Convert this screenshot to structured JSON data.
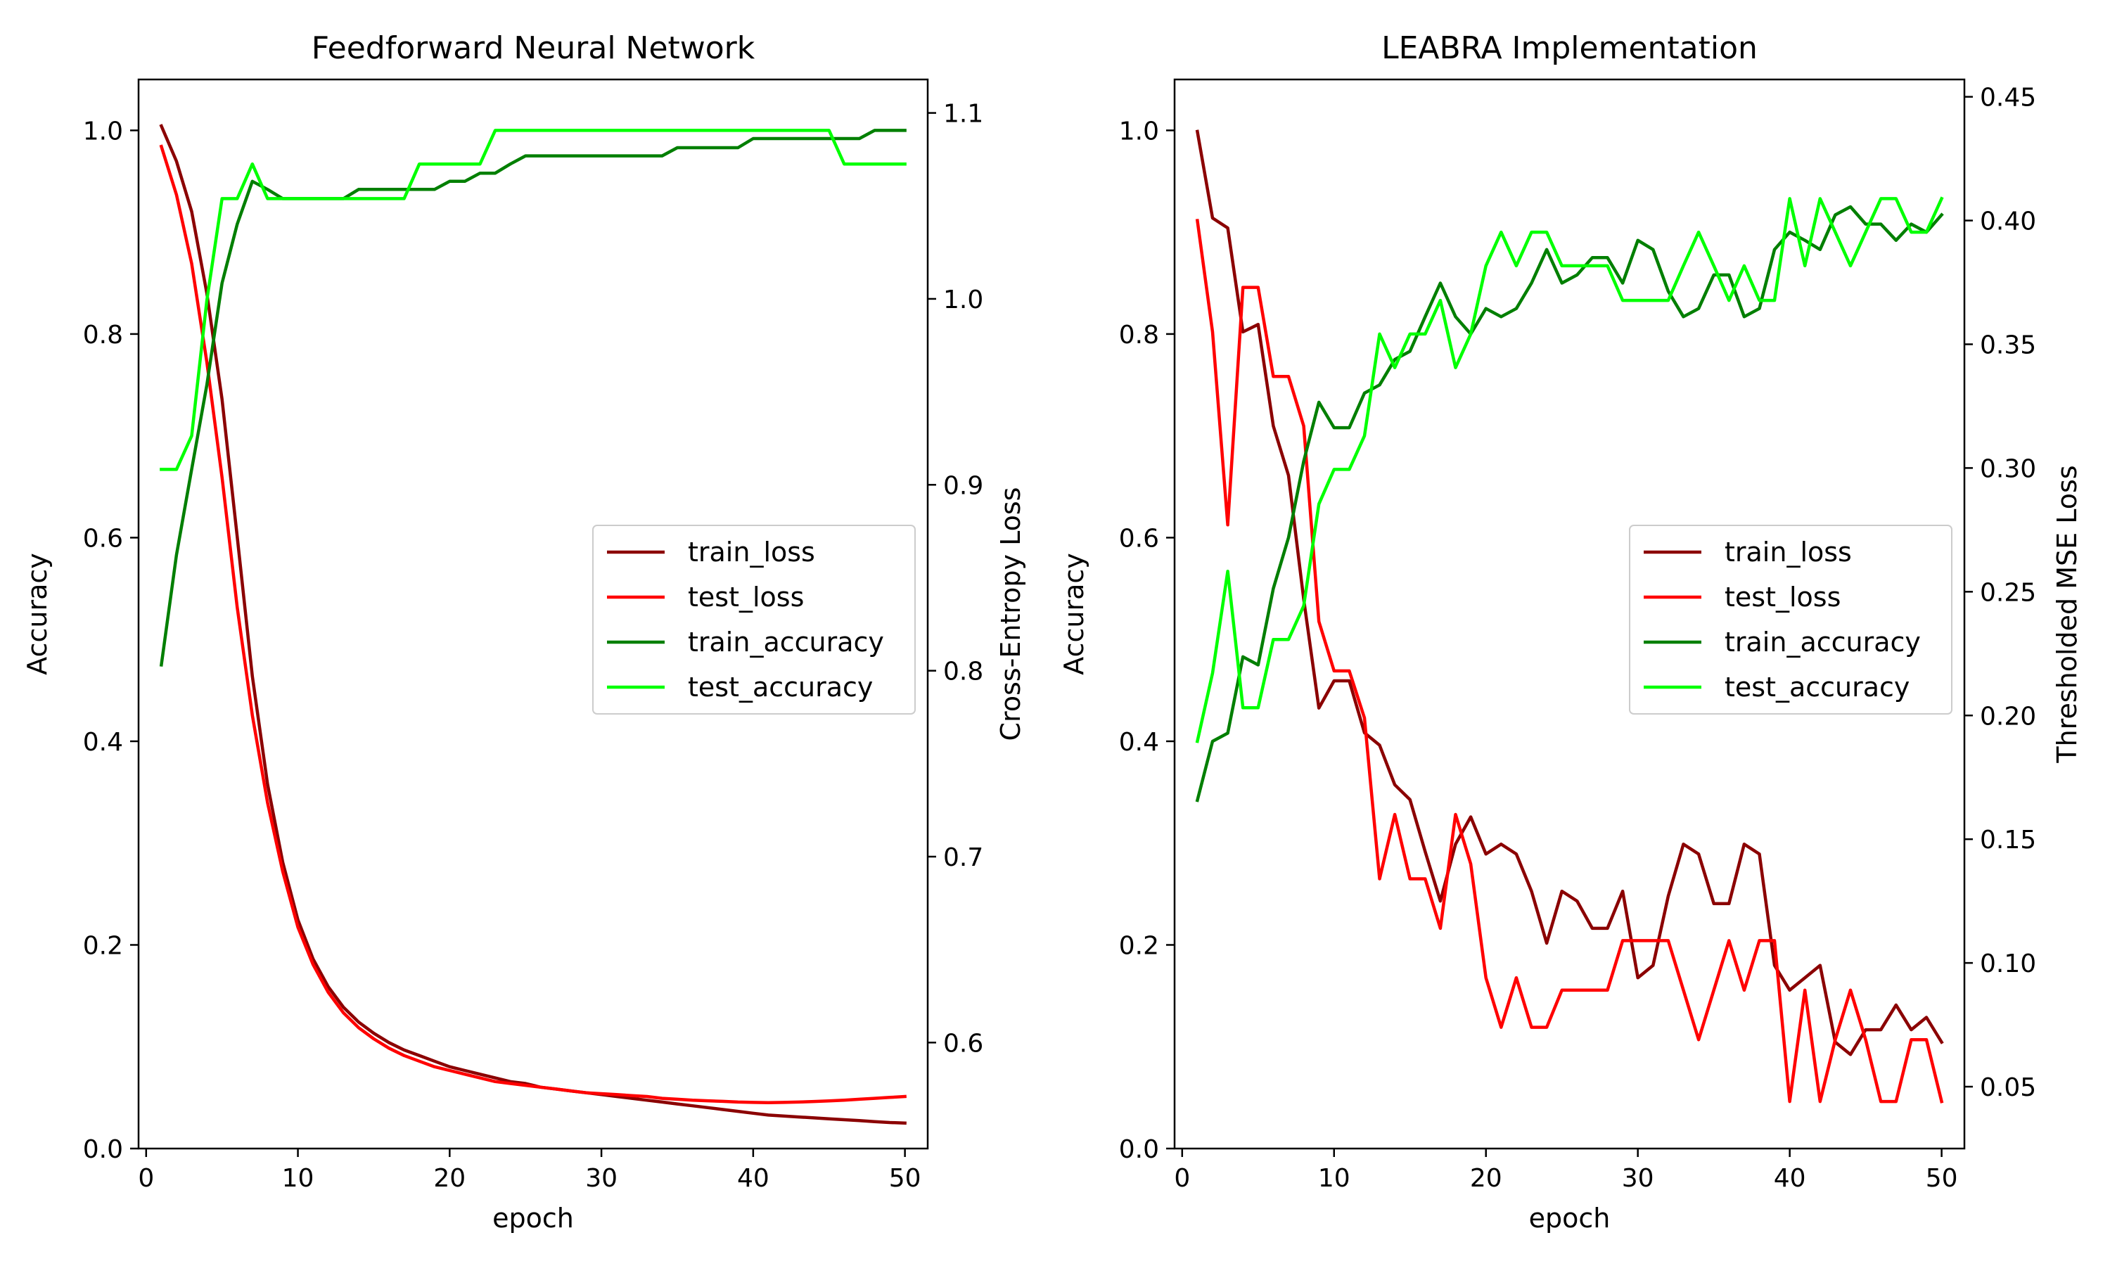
{
  "chart_data": [
    {
      "type": "line",
      "title": "Feedforward Neural Network",
      "xlabel": "epoch",
      "ylabel": "Accuracy",
      "y2label": "Cross-Entropy Loss",
      "xlim": [
        -0.5,
        51.5
      ],
      "ylim": [
        0,
        1.05
      ],
      "y2lim": [
        0.543,
        1.118
      ],
      "xticks": [
        0,
        10,
        20,
        30,
        40,
        50
      ],
      "xtick_labels": [
        "0",
        "10",
        "20",
        "30",
        "40",
        "50"
      ],
      "yticks": [
        0.0,
        0.2,
        0.4,
        0.6,
        0.8,
        1.0
      ],
      "ytick_labels": [
        "0.0",
        "0.2",
        "0.4",
        "0.6",
        "0.8",
        "1.0"
      ],
      "y2ticks": [
        0.6,
        0.7,
        0.8,
        0.9,
        1.0,
        1.1
      ],
      "y2tick_labels": [
        "0.6",
        "0.7",
        "0.8",
        "0.9",
        "1.0",
        "1.1"
      ],
      "legend_position": "center-right",
      "grid": false,
      "x": [
        1,
        2,
        3,
        4,
        5,
        6,
        7,
        8,
        9,
        10,
        11,
        12,
        13,
        14,
        15,
        16,
        17,
        18,
        19,
        20,
        21,
        22,
        23,
        24,
        25,
        26,
        27,
        28,
        29,
        30,
        31,
        32,
        33,
        34,
        35,
        36,
        37,
        38,
        39,
        40,
        41,
        42,
        43,
        44,
        45,
        46,
        47,
        48,
        49,
        50
      ],
      "series": [
        {
          "name": "train_loss",
          "axis": "right",
          "color": "#8b0000",
          "values": [
            1.093,
            1.074,
            1.047,
            1.003,
            0.946,
            0.872,
            0.797,
            0.739,
            0.697,
            0.666,
            0.645,
            0.63,
            0.619,
            0.611,
            0.605,
            0.6,
            0.596,
            0.593,
            0.59,
            0.587,
            0.585,
            0.583,
            0.581,
            0.579,
            0.578,
            0.576,
            0.575,
            0.574,
            0.573,
            0.572,
            0.571,
            0.57,
            0.569,
            0.568,
            0.567,
            0.566,
            0.565,
            0.564,
            0.563,
            0.562,
            0.561,
            0.5605,
            0.56,
            0.5595,
            0.559,
            0.5585,
            0.558,
            0.5575,
            0.557,
            0.5567
          ]
        },
        {
          "name": "test_loss",
          "axis": "right",
          "color": "#ff0000",
          "values": [
            1.082,
            1.056,
            1.019,
            0.966,
            0.904,
            0.834,
            0.776,
            0.729,
            0.692,
            0.662,
            0.642,
            0.627,
            0.616,
            0.608,
            0.602,
            0.597,
            0.593,
            0.59,
            0.587,
            0.585,
            0.583,
            0.581,
            0.579,
            0.578,
            0.577,
            0.576,
            0.575,
            0.574,
            0.573,
            0.5725,
            0.572,
            0.5715,
            0.571,
            0.57,
            0.5695,
            0.569,
            0.5687,
            0.5684,
            0.568,
            0.5678,
            0.5677,
            0.5678,
            0.568,
            0.5683,
            0.5686,
            0.569,
            0.5695,
            0.57,
            0.5705,
            0.571
          ]
        },
        {
          "name": "train_accuracy",
          "axis": "left",
          "color": "#007f00",
          "values": [
            0.475,
            0.583,
            0.667,
            0.75,
            0.85,
            0.908,
            0.95,
            0.942,
            0.933,
            0.933,
            0.933,
            0.933,
            0.933,
            0.942,
            0.942,
            0.942,
            0.942,
            0.942,
            0.942,
            0.95,
            0.95,
            0.958,
            0.958,
            0.967,
            0.975,
            0.975,
            0.975,
            0.975,
            0.975,
            0.975,
            0.975,
            0.975,
            0.975,
            0.975,
            0.983,
            0.983,
            0.983,
            0.983,
            0.983,
            0.992,
            0.992,
            0.992,
            0.992,
            0.992,
            0.992,
            0.992,
            0.992,
            1.0,
            1.0,
            1.0
          ]
        },
        {
          "name": "test_accuracy",
          "axis": "left",
          "color": "#00ff00",
          "values": [
            0.667,
            0.667,
            0.7,
            0.833,
            0.933,
            0.933,
            0.967,
            0.933,
            0.933,
            0.933,
            0.933,
            0.933,
            0.933,
            0.933,
            0.933,
            0.933,
            0.933,
            0.967,
            0.967,
            0.967,
            0.967,
            0.967,
            1.0,
            1.0,
            1.0,
            1.0,
            1.0,
            1.0,
            1.0,
            1.0,
            1.0,
            1.0,
            1.0,
            1.0,
            1.0,
            1.0,
            1.0,
            1.0,
            1.0,
            1.0,
            1.0,
            1.0,
            1.0,
            1.0,
            1.0,
            0.967,
            0.967,
            0.967,
            0.967,
            0.967
          ]
        }
      ]
    },
    {
      "type": "line",
      "title": "LEABRA Implementation",
      "xlabel": "epoch",
      "ylabel": "Accuracy",
      "y2label": "Thresholded MSE Loss",
      "xlim": [
        -0.5,
        51.5
      ],
      "ylim": [
        0,
        1.05
      ],
      "y2lim": [
        0.025,
        0.457
      ],
      "xticks": [
        0,
        10,
        20,
        30,
        40,
        50
      ],
      "xtick_labels": [
        "0",
        "10",
        "20",
        "30",
        "40",
        "50"
      ],
      "yticks": [
        0.0,
        0.2,
        0.4,
        0.6,
        0.8,
        1.0
      ],
      "ytick_labels": [
        "0.0",
        "0.2",
        "0.4",
        "0.6",
        "0.8",
        "1.0"
      ],
      "y2ticks": [
        0.05,
        0.1,
        0.15,
        0.2,
        0.25,
        0.3,
        0.35,
        0.4,
        0.45
      ],
      "y2tick_labels": [
        "0.05",
        "0.10",
        "0.15",
        "0.20",
        "0.25",
        "0.30",
        "0.35",
        "0.40",
        "0.45"
      ],
      "legend_position": "center-right",
      "grid": false,
      "x": [
        1,
        2,
        3,
        4,
        5,
        6,
        7,
        8,
        9,
        10,
        11,
        12,
        13,
        14,
        15,
        16,
        17,
        18,
        19,
        20,
        21,
        22,
        23,
        24,
        25,
        26,
        27,
        28,
        29,
        30,
        31,
        32,
        33,
        34,
        35,
        36,
        37,
        38,
        39,
        40,
        41,
        42,
        43,
        44,
        45,
        46,
        47,
        48,
        49,
        50
      ],
      "series": [
        {
          "name": "train_loss",
          "axis": "right",
          "color": "#8b0000",
          "values": [
            0.436,
            0.401,
            0.397,
            0.355,
            0.358,
            0.317,
            0.297,
            0.247,
            0.203,
            0.214,
            0.214,
            0.193,
            0.188,
            0.172,
            0.166,
            0.145,
            0.125,
            0.148,
            0.159,
            0.144,
            0.148,
            0.144,
            0.129,
            0.108,
            0.129,
            0.125,
            0.114,
            0.114,
            0.129,
            0.094,
            0.099,
            0.127,
            0.148,
            0.144,
            0.124,
            0.124,
            0.148,
            0.144,
            0.099,
            0.089,
            0.094,
            0.099,
            0.068,
            0.063,
            0.073,
            0.073,
            0.083,
            0.073,
            0.078,
            0.068
          ]
        },
        {
          "name": "test_loss",
          "axis": "right",
          "color": "#ff0000",
          "values": [
            0.4,
            0.355,
            0.277,
            0.373,
            0.373,
            0.337,
            0.337,
            0.317,
            0.238,
            0.218,
            0.218,
            0.199,
            0.134,
            0.16,
            0.134,
            0.134,
            0.114,
            0.16,
            0.14,
            0.094,
            0.074,
            0.094,
            0.074,
            0.074,
            0.089,
            0.089,
            0.089,
            0.089,
            0.109,
            0.109,
            0.109,
            0.109,
            0.089,
            0.069,
            0.089,
            0.109,
            0.089,
            0.109,
            0.109,
            0.044,
            0.089,
            0.044,
            0.069,
            0.089,
            0.069,
            0.044,
            0.044,
            0.069,
            0.069,
            0.044
          ]
        },
        {
          "name": "train_accuracy",
          "axis": "left",
          "color": "#007f00",
          "values": [
            0.342,
            0.4,
            0.408,
            0.483,
            0.475,
            0.55,
            0.6,
            0.675,
            0.733,
            0.708,
            0.708,
            0.742,
            0.75,
            0.775,
            0.783,
            0.817,
            0.85,
            0.817,
            0.8,
            0.825,
            0.817,
            0.825,
            0.85,
            0.883,
            0.85,
            0.858,
            0.875,
            0.875,
            0.85,
            0.892,
            0.883,
            0.842,
            0.817,
            0.825,
            0.858,
            0.858,
            0.817,
            0.825,
            0.883,
            0.9,
            0.892,
            0.883,
            0.917,
            0.925,
            0.908,
            0.908,
            0.892,
            0.908,
            0.9,
            0.917
          ]
        },
        {
          "name": "test_accuracy",
          "axis": "left",
          "color": "#00ff00",
          "values": [
            0.4,
            0.467,
            0.567,
            0.433,
            0.433,
            0.5,
            0.5,
            0.533,
            0.633,
            0.667,
            0.667,
            0.7,
            0.8,
            0.767,
            0.8,
            0.8,
            0.833,
            0.767,
            0.8,
            0.867,
            0.9,
            0.867,
            0.9,
            0.9,
            0.867,
            0.867,
            0.867,
            0.867,
            0.833,
            0.833,
            0.833,
            0.833,
            0.867,
            0.9,
            0.867,
            0.833,
            0.867,
            0.833,
            0.833,
            0.933,
            0.867,
            0.933,
            0.9,
            0.867,
            0.9,
            0.933,
            0.933,
            0.9,
            0.9,
            0.933
          ]
        }
      ]
    }
  ]
}
